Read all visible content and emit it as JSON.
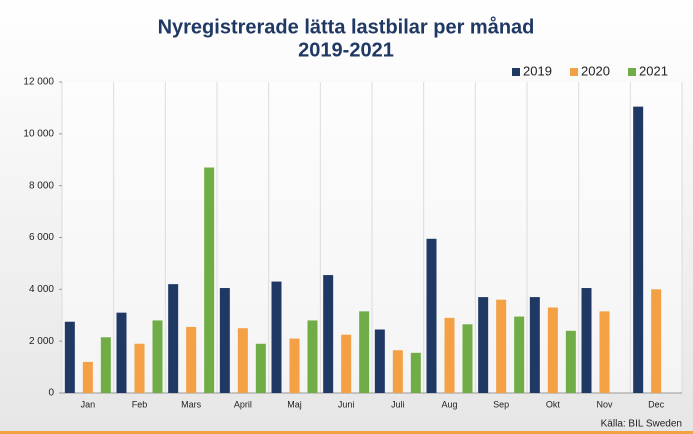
{
  "chart_data": {
    "type": "bar",
    "title": [
      "Nyregistrerade lätta lastbilar per månad",
      "2019-2021"
    ],
    "categories": [
      "Jan",
      "Feb",
      "Mars",
      "April",
      "Maj",
      "Juni",
      "Juli",
      "Aug",
      "Sep",
      "Okt",
      "Nov",
      "Dec"
    ],
    "series": [
      {
        "name": "2019",
        "color": "#1f3864",
        "values": [
          2750,
          3100,
          4200,
          4050,
          4300,
          4550,
          2450,
          5950,
          3700,
          3700,
          4050,
          11050
        ]
      },
      {
        "name": "2020",
        "color": "#f4a045",
        "values": [
          1200,
          1900,
          2550,
          2500,
          2100,
          2250,
          1650,
          2900,
          3600,
          3300,
          3150,
          4000
        ]
      },
      {
        "name": "2021",
        "color": "#70ad47",
        "values": [
          2150,
          2800,
          8700,
          1900,
          2800,
          3150,
          1550,
          2650,
          2950,
          2400,
          null,
          null
        ]
      }
    ],
    "ylim": [
      0,
      12000
    ],
    "yticks": [
      0,
      {
        "value": 2000,
        "label": "2 000"
      },
      {
        "value": 4000,
        "label": "4 000"
      },
      {
        "value": 6000,
        "label": "6 000"
      },
      {
        "value": 8000,
        "label": "8 000"
      },
      {
        "value": 10000,
        "label": "10 000"
      },
      {
        "value": 12000,
        "label": "12 000"
      }
    ],
    "grid": false,
    "legend": "top-right",
    "source": "Källa: BIL Sweden"
  }
}
